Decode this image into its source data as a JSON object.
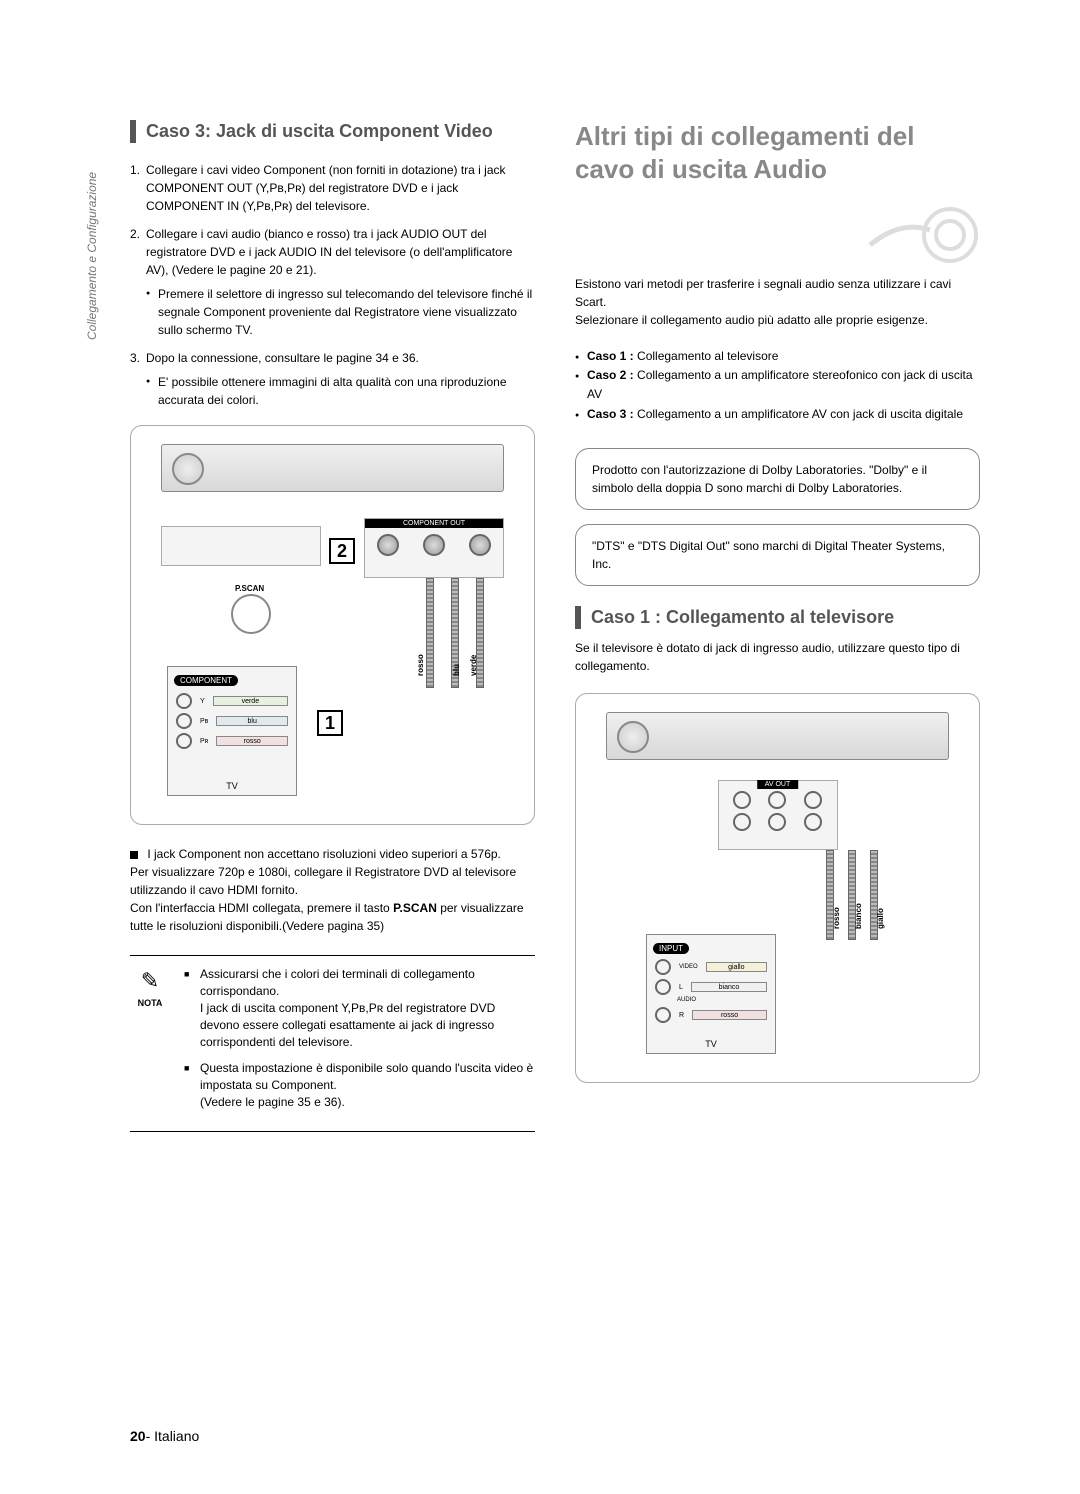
{
  "side_label": "Collegamento e Configurazione",
  "left": {
    "title": "Caso 3: Jack di uscita Component Video",
    "steps": {
      "s1": "Collegare i cavi video Component (non forniti in dotazione) tra i jack COMPONENT OUT (Y,Pʙ,Pʀ) del registratore DVD e i jack COMPONENT IN (Y,Pʙ,Pʀ) del televisore.",
      "s2": "Collegare i cavi audio (bianco e rosso) tra i jack AUDIO OUT del registratore DVD e i jack AUDIO IN del televisore (o dell'amplificatore AV), (Vedere le pagine 20 e 21).",
      "s2_bullet": "Premere il selettore di ingresso sul telecomando del televisore finché il segnale Component proveniente dal Registratore viene visualizzato sullo schermo TV.",
      "s3": "Dopo la connessione, consultare le pagine 34 e 36.",
      "s3_bullet": "E' possibile ottenere immagini di alta qualità con una riproduzione accurata dei colori."
    },
    "diagram": {
      "comp_out_label": "COMPONENT OUT",
      "pscan_label": "P.SCAN",
      "num1": "1",
      "num2": "2",
      "tv_component_label": "COMPONENT",
      "cable_verde": "verde",
      "cable_blu": "blu",
      "cable_rosso": "rosso",
      "tv_label": "TV",
      "jack_y": "Y",
      "jack_pb": "Pʙ",
      "jack_pr": "Pʀ"
    },
    "note_para": "I jack Component non accettano risoluzioni video superiori a 576p.\nPer visualizzare 720p e 1080i, collegare il Registratore DVD al televisore utilizzando il cavo HDMI fornito.\nCon l'interfaccia HDMI collegata, premere il tasto P.SCAN per visualizzare tutte le risoluzioni disponibili.(Vedere pagina 35)",
    "pscan_bold": "P.SCAN",
    "nota_label": "NOTA",
    "nota1": "Assicurarsi che i colori dei terminali di collegamento corrispondano.\nI jack di uscita component Y,Pʙ,Pʀ del registratore DVD devono essere collegati esattamente ai jack di ingresso corrispondenti del televisore.",
    "nota2": "Questa impostazione è disponibile solo quando l'uscita video è impostata su Component.\n(Vedere le pagine 35 e 36)."
  },
  "right": {
    "big_title": "Altri tipi di collegamenti del cavo di uscita Audio",
    "intro": "Esistono vari metodi per trasferire i segnali audio senza utilizzare i cavi Scart.\nSelezionare il collegamento audio più adatto alle proprie esigenze.",
    "caso1_label": "Caso 1 :",
    "caso1_text": "Collegamento al televisore",
    "caso2_label": "Caso 2 :",
    "caso2_text": "Collegamento a un amplificatore stereofonico con jack di uscita AV",
    "caso3_label": "Caso 3 :",
    "caso3_text": "Collegamento a un amplificatore AV con jack di uscita digitale",
    "dolby_box": "Prodotto con l'autorizzazione di Dolby Laboratories. \"Dolby\" e il simbolo della doppia D sono marchi di Dolby Laboratories.",
    "dts_box": "\"DTS\" e \"DTS Digital Out\" sono marchi di Digital Theater Systems, Inc.",
    "sub_title": "Caso 1 : Collegamento al televisore",
    "sub_intro": "Se il televisore è dotato di jack di ingresso audio, utilizzare questo tipo di collegamento.",
    "diagram": {
      "avout_label": "AV OUT",
      "input_label": "INPUT",
      "video_label": "VIDEO",
      "audio_label": "AUDIO",
      "giallo": "giallo",
      "bianco": "bianco",
      "rosso": "rosso",
      "tv_label": "TV"
    }
  },
  "footer": {
    "page_num": "20",
    "page_text": "- Italiano"
  },
  "colors": {
    "heading_gray": "#888888",
    "section_gray": "#555555",
    "text": "#000000",
    "border": "#888888"
  }
}
